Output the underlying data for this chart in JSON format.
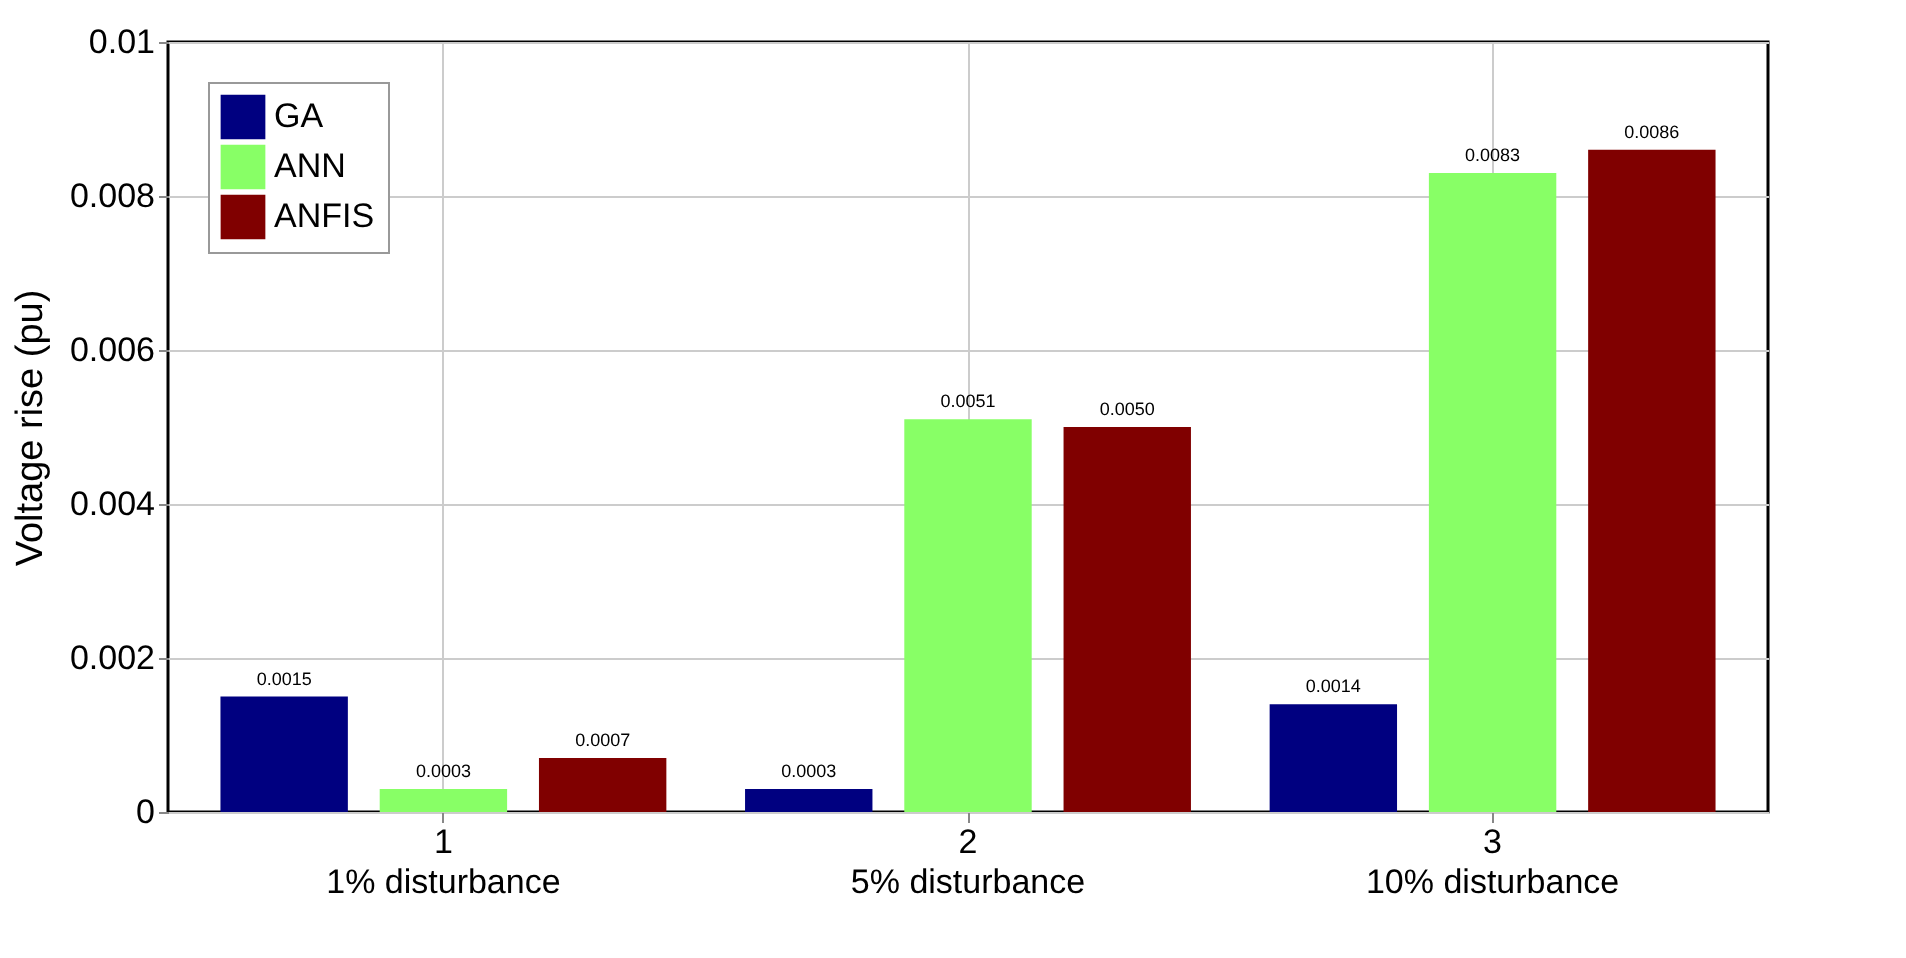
{
  "chart_data": {
    "type": "bar",
    "ylabel": "Voltage rise (pu)",
    "categories": [
      "1\n1% disturbance",
      "2\n5% disturbance",
      "3\n10% disturbance"
    ],
    "series": [
      {
        "name": "GA",
        "color": "#000080",
        "values": [
          0.0015,
          0.0003,
          0.0014
        ],
        "value_labels": [
          "0.0015",
          "0.0003",
          "0.0014"
        ]
      },
      {
        "name": "ANN",
        "color": "#88ff66",
        "values": [
          0.0003,
          0.0051,
          0.0083
        ],
        "value_labels": [
          "0.0003",
          "0.0051",
          "0.0083"
        ]
      },
      {
        "name": "ANFIS",
        "color": "#800000",
        "values": [
          0.0007,
          0.005,
          0.0086
        ],
        "value_labels": [
          "0.0007",
          "0.0050",
          "0.0086"
        ]
      }
    ],
    "ylim": [
      0,
      0.01
    ],
    "yticks": [
      0,
      0.002,
      0.004,
      0.006,
      0.008,
      0.01
    ],
    "grid": true,
    "legend": "top left"
  }
}
